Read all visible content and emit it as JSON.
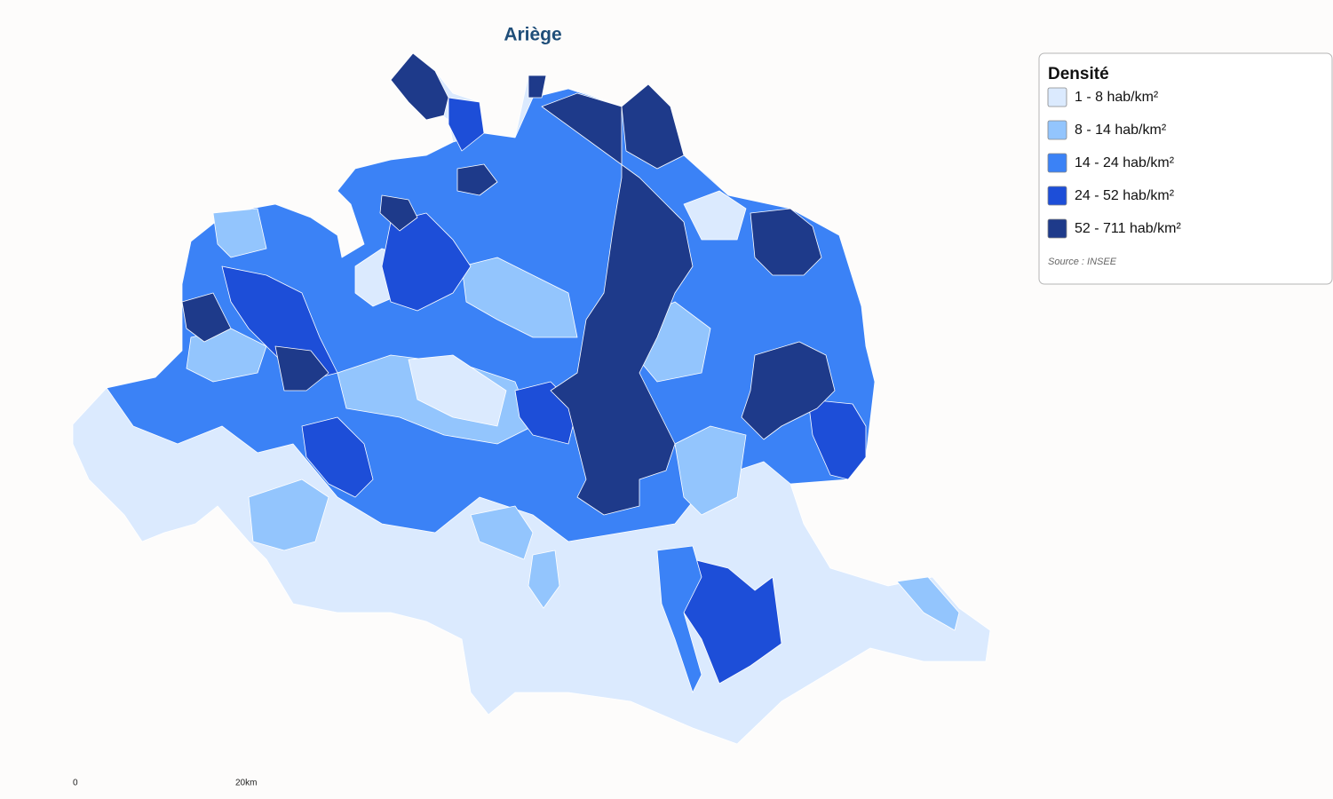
{
  "title": "Ariège",
  "legend": {
    "title": "Densité",
    "items": [
      {
        "label": "1 - 8 hab/km²",
        "color": "#dbeafe"
      },
      {
        "label": "8 - 14 hab/km²",
        "color": "#93c5fd"
      },
      {
        "label": "14 - 24 hab/km²",
        "color": "#3b82f6"
      },
      {
        "label": "24 - 52 hab/km²",
        "color": "#1d4ed8"
      },
      {
        "label": "52 - 711 hab/km²",
        "color": "#1e3a8a"
      }
    ],
    "source": "Source : INSEE"
  },
  "scale": {
    "start": "0",
    "end": "20km"
  }
}
